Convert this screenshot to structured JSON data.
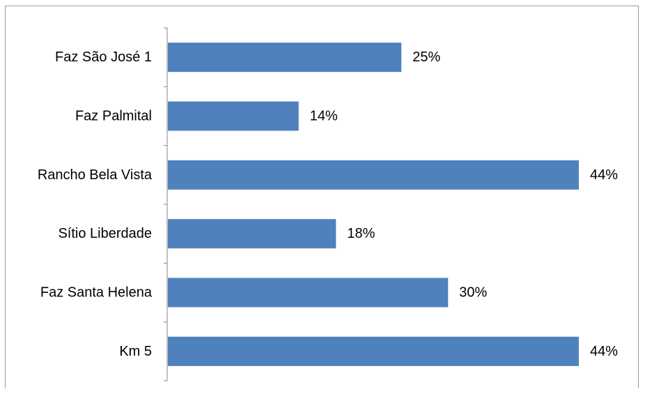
{
  "chart_data": {
    "type": "bar",
    "orientation": "horizontal",
    "categories": [
      "Faz São José 1",
      "Faz Palmital",
      "Rancho Bela Vista",
      "Sítio Liberdade",
      "Faz Santa Helena",
      "Km 5"
    ],
    "values": [
      25,
      14,
      44,
      18,
      30,
      44
    ],
    "value_labels": [
      "25%",
      "14%",
      "44%",
      "18%",
      "30%",
      "44%"
    ],
    "value_unit": "%",
    "xlim": [
      0,
      44
    ],
    "title": "",
    "xlabel": "",
    "ylabel": "",
    "grid": false,
    "legend": "none",
    "bar_color": "#4F81BD",
    "axis_color": "#868686"
  }
}
